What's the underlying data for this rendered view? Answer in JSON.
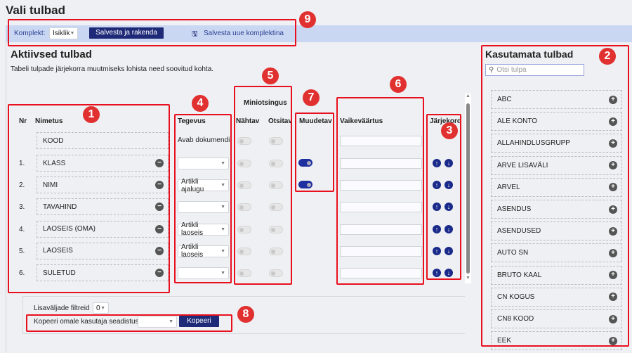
{
  "title": "Vali tulbad",
  "toolbar": {
    "komplekt_label": "Komplekt:",
    "komplekt_value": "Isiklik",
    "save_apply": "Salvesta ja rakenda",
    "save_new": "Salvesta uue komplektina"
  },
  "active": {
    "title": "Aktiivsed tulbad",
    "hint": "Tabeli tulpade järjekorra muutmiseks lohista need soovitud kohta.",
    "headers": {
      "nr": "Nr",
      "name": "Nimetus",
      "action": "Tegevus",
      "mini": "Miniotsingus",
      "visible": "Nähtav",
      "searchable": "Otsitav",
      "editable": "Muudetav",
      "default": "Vaikeväärtus",
      "order": "Järjekord"
    },
    "fixed_row": {
      "name": "KOOD",
      "action": "Avab dokumendi"
    },
    "rows": [
      {
        "nr": "1.",
        "name": "KLASS",
        "action": "",
        "editable": true
      },
      {
        "nr": "2.",
        "name": "NIMI",
        "action": "Artikli ajalugu",
        "editable": true
      },
      {
        "nr": "3.",
        "name": "TAVAHIND",
        "action": "",
        "editable": false
      },
      {
        "nr": "4.",
        "name": "LAOSEIS (OMA)",
        "action": "Artikli laoseis",
        "editable": false
      },
      {
        "nr": "5.",
        "name": "LAOSEIS",
        "action": "Artikli laoseis",
        "editable": false
      },
      {
        "nr": "6.",
        "name": "SULETUD",
        "action": "",
        "editable": false
      }
    ]
  },
  "bottom": {
    "filters_label": "Lisaväljade filtreid",
    "filters_value": "0",
    "copy_label": "Kopeeri omale kasutaja seadistus",
    "copy_value": "",
    "copy_button": "Kopeeri"
  },
  "unused": {
    "title": "Kasutamata tulbad",
    "search_placeholder": "Otsi tulpa",
    "items": [
      "ABC",
      "ALE KONTO",
      "ALLAHINDLUSGRUPP",
      "ARVE LISAVÄLI",
      "ARVEL",
      "ASENDUS",
      "ASENDUSED",
      "AUTO SN",
      "BRUTO KAAL",
      "CN KOGUS",
      "CN8 KOOD",
      "EEK"
    ]
  },
  "badges": [
    "1",
    "2",
    "3",
    "4",
    "5",
    "6",
    "7",
    "8",
    "9"
  ],
  "colors": {
    "accent": "#1e2a78",
    "annotation": "#e8101e",
    "toolbar_bg": "#cad7f3"
  }
}
